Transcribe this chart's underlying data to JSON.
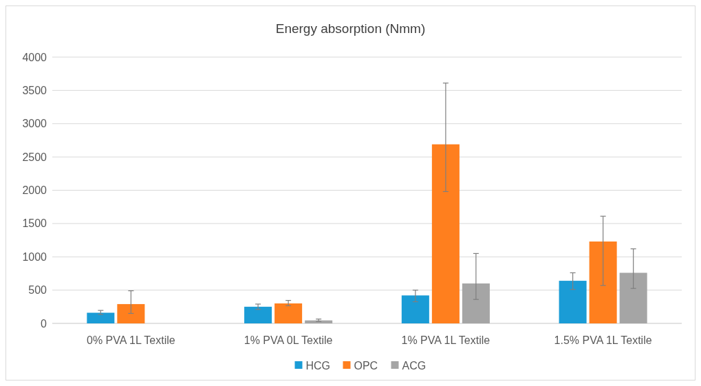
{
  "chart_data": {
    "type": "bar",
    "title": "Energy absorption (Nmm)",
    "categories": [
      "0% PVA 1L Textile",
      "1% PVA 0L Textile",
      "1% PVA 1L Textile",
      "1.5% PVA 1L Textile"
    ],
    "series": [
      {
        "name": "HCG",
        "color": "#1a9cd6",
        "values": [
          160,
          250,
          420,
          640
        ],
        "errors": [
          [
            135,
            195
          ],
          [
            210,
            290
          ],
          [
            325,
            500
          ],
          [
            510,
            760
          ]
        ]
      },
      {
        "name": "OPC",
        "color": "#ff7f1e",
        "values": [
          290,
          300,
          2690,
          1230
        ],
        "errors": [
          [
            150,
            490
          ],
          [
            265,
            345
          ],
          [
            1980,
            3610
          ],
          [
            570,
            1610
          ]
        ]
      },
      {
        "name": "ACG",
        "color": "#a5a5a5",
        "values": [
          null,
          45,
          600,
          760
        ],
        "errors": [
          null,
          [
            30,
            65
          ],
          [
            360,
            1050
          ],
          [
            525,
            1120
          ]
        ]
      }
    ],
    "ylim": [
      0,
      4000
    ],
    "yticks": [
      0,
      500,
      1000,
      1500,
      2000,
      2500,
      3000,
      3500,
      4000
    ],
    "grid": "y",
    "legend": "bottom"
  }
}
